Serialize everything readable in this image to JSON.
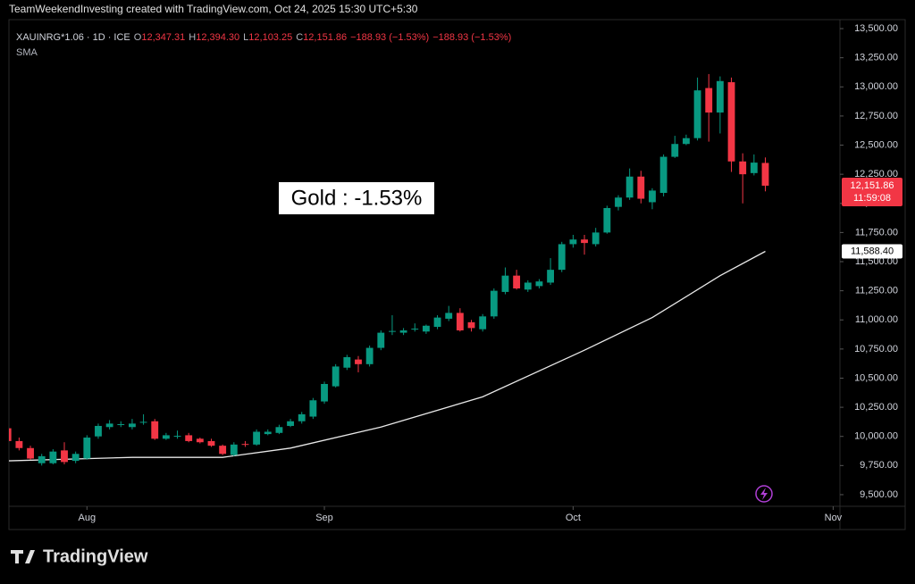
{
  "chart_data": {
    "type": "candlestick",
    "header": "TeamWeekendInvesting created with TradingView.com, Oct 24, 2025 15:30 UTC+5:30",
    "symbol": "XAUINRG*1.06 · 1D · ICE",
    "legend": [
      {
        "label": "O",
        "value": "12,347.31"
      },
      {
        "label": "H",
        "value": "12,394.30"
      },
      {
        "label": "L",
        "value": "12,103.25"
      },
      {
        "label": "C",
        "value": "12,151.86"
      },
      {
        "label": "",
        "value": "−188.93 (−1.53%)"
      },
      {
        "label": "",
        "value": "−188.93 (−1.53%)"
      }
    ],
    "indicator": "SMA",
    "annotation": "Gold : -1.53%",
    "logo": "TradingView",
    "up_color": "#089981",
    "down_color": "#f23645",
    "x": [
      -7,
      -6,
      -5,
      -4,
      -3,
      -2,
      -1,
      0,
      1,
      2,
      3,
      4,
      5,
      6,
      7,
      8,
      9,
      10,
      11,
      12,
      13,
      14,
      15,
      16,
      17,
      18,
      19,
      20,
      21,
      22,
      23,
      24,
      25,
      26,
      27,
      28,
      29,
      30,
      31,
      32,
      33,
      34,
      35,
      36,
      37,
      38,
      39,
      40,
      41,
      42,
      43,
      44,
      45,
      46,
      47,
      48,
      49,
      50,
      51,
      52,
      53,
      54,
      55,
      56,
      57,
      58,
      59,
      60
    ],
    "open": [
      10070,
      9960,
      9900,
      9770,
      9770,
      9880,
      9790,
      9810,
      10000,
      10080,
      10100,
      10080,
      10120,
      10130,
      9980,
      10000,
      10010,
      9980,
      9960,
      9920,
      9840,
      9935,
      9930,
      10020,
      10030,
      10090,
      10130,
      10170,
      10300,
      10430,
      10590,
      10660,
      10620,
      10760,
      10900,
      10890,
      10920,
      10900,
      10940,
      11010,
      11060,
      10980,
      10920,
      11030,
      11240,
      11380,
      11260,
      11290,
      11320,
      11430,
      11650,
      11690,
      11650,
      11750,
      11970,
      12050,
      12230,
      12010,
      12090,
      12400,
      12510,
      12560,
      12990,
      12780,
      13040,
      12360,
      12260,
      12347.31
    ],
    "high": [
      10100,
      9990,
      9920,
      9850,
      9890,
      9950,
      9870,
      10010,
      10110,
      10140,
      10130,
      10150,
      10190,
      10150,
      10030,
      10050,
      10030,
      9990,
      9980,
      9930,
      9950,
      9960,
      10060,
      10060,
      10100,
      10150,
      10210,
      10330,
      10470,
      10620,
      10700,
      10690,
      10780,
      10910,
      11040,
      10930,
      10970,
      10960,
      11040,
      11120,
      11100,
      11000,
      11050,
      11270,
      11450,
      11430,
      11340,
      11350,
      11530,
      11670,
      11730,
      11730,
      11790,
      11980,
      12070,
      12300,
      12280,
      12130,
      12420,
      12580,
      12590,
      13080,
      13110,
      13090,
      13080,
      12430,
      12420,
      12394.3
    ],
    "low": [
      9950,
      9880,
      9800,
      9750,
      9760,
      9760,
      9770,
      9800,
      9980,
      10060,
      10080,
      10060,
      10100,
      9970,
      9970,
      9980,
      9950,
      9940,
      9910,
      9840,
      9830,
      9910,
      9920,
      10010,
      10020,
      10080,
      10110,
      10150,
      10280,
      10420,
      10570,
      10550,
      10600,
      10740,
      10870,
      10870,
      10900,
      10880,
      10920,
      10990,
      10900,
      10900,
      10900,
      11010,
      11220,
      11260,
      11240,
      11270,
      11300,
      11410,
      11620,
      11560,
      11630,
      11740,
      11940,
      12030,
      12000,
      11950,
      12060,
      12390,
      12500,
      12540,
      12530,
      12600,
      12270,
      12000,
      12240,
      12103.25
    ],
    "close": [
      9960,
      9900,
      9810,
      9830,
      9870,
      9780,
      9850,
      9990,
      10090,
      10110,
      10105,
      10110,
      10125,
      9980,
      10010,
      10005,
      9960,
      9950,
      9920,
      9850,
      9930,
      9930,
      10040,
      10040,
      10080,
      10130,
      10190,
      10310,
      10450,
      10600,
      10680,
      10620,
      10760,
      10890,
      10905,
      10910,
      10925,
      10950,
      11020,
      11060,
      10910,
      10930,
      11030,
      11250,
      11380,
      11270,
      11320,
      11330,
      11430,
      11650,
      11690,
      11660,
      11750,
      11960,
      12050,
      12230,
      12040,
      12110,
      12400,
      12510,
      12560,
      12970,
      12780,
      13050,
      12360,
      12250,
      12350,
      12151.86
    ],
    "sma": {
      "name": "SMA",
      "color": "#e8e8e8",
      "x": [
        -7,
        4,
        12,
        18,
        26,
        35,
        44,
        50,
        56,
        60
      ],
      "values": [
        9790,
        9820,
        9820,
        9900,
        10080,
        10340,
        10740,
        11020,
        11380,
        11588.4
      ]
    },
    "xlim": [
      -6.9,
      66.6
    ],
    "ylim": [
      9400,
      13577
    ],
    "xticks": [
      {
        "value": 0,
        "label": "Aug"
      },
      {
        "value": 21,
        "label": "Sep"
      },
      {
        "value": 43,
        "label": "Oct"
      },
      {
        "value": 66,
        "label": "Nov"
      }
    ],
    "yticks": [
      {
        "value": 13500,
        "label": "13,500.00"
      },
      {
        "value": 13250,
        "label": "13,250.00"
      },
      {
        "value": 13000,
        "label": "13,000.00"
      },
      {
        "value": 12750,
        "label": "12,750.00"
      },
      {
        "value": 12500,
        "label": "12,500.00"
      },
      {
        "value": 12250,
        "label": "12,250.00"
      },
      {
        "value": 12000,
        "label": "12,000.00"
      },
      {
        "value": 11750,
        "label": "11,750.00"
      },
      {
        "value": 11500,
        "label": "11,500.00"
      },
      {
        "value": 11250,
        "label": "11,250.00"
      },
      {
        "value": 11000,
        "label": "11,000.00"
      },
      {
        "value": 10750,
        "label": "10,750.00"
      },
      {
        "value": 10500,
        "label": "10,500.00"
      },
      {
        "value": 10250,
        "label": "10,250.00"
      },
      {
        "value": 10000,
        "label": "10,000.00"
      },
      {
        "value": 9750,
        "label": "9,750.00"
      },
      {
        "value": 9500,
        "label": "9,500.00"
      }
    ],
    "price_label": {
      "value": 12151.86,
      "label": "12,151.86",
      "timer": "11:59:08"
    },
    "sma_label": {
      "value": 11588.4,
      "label": "11,588.40"
    }
  }
}
